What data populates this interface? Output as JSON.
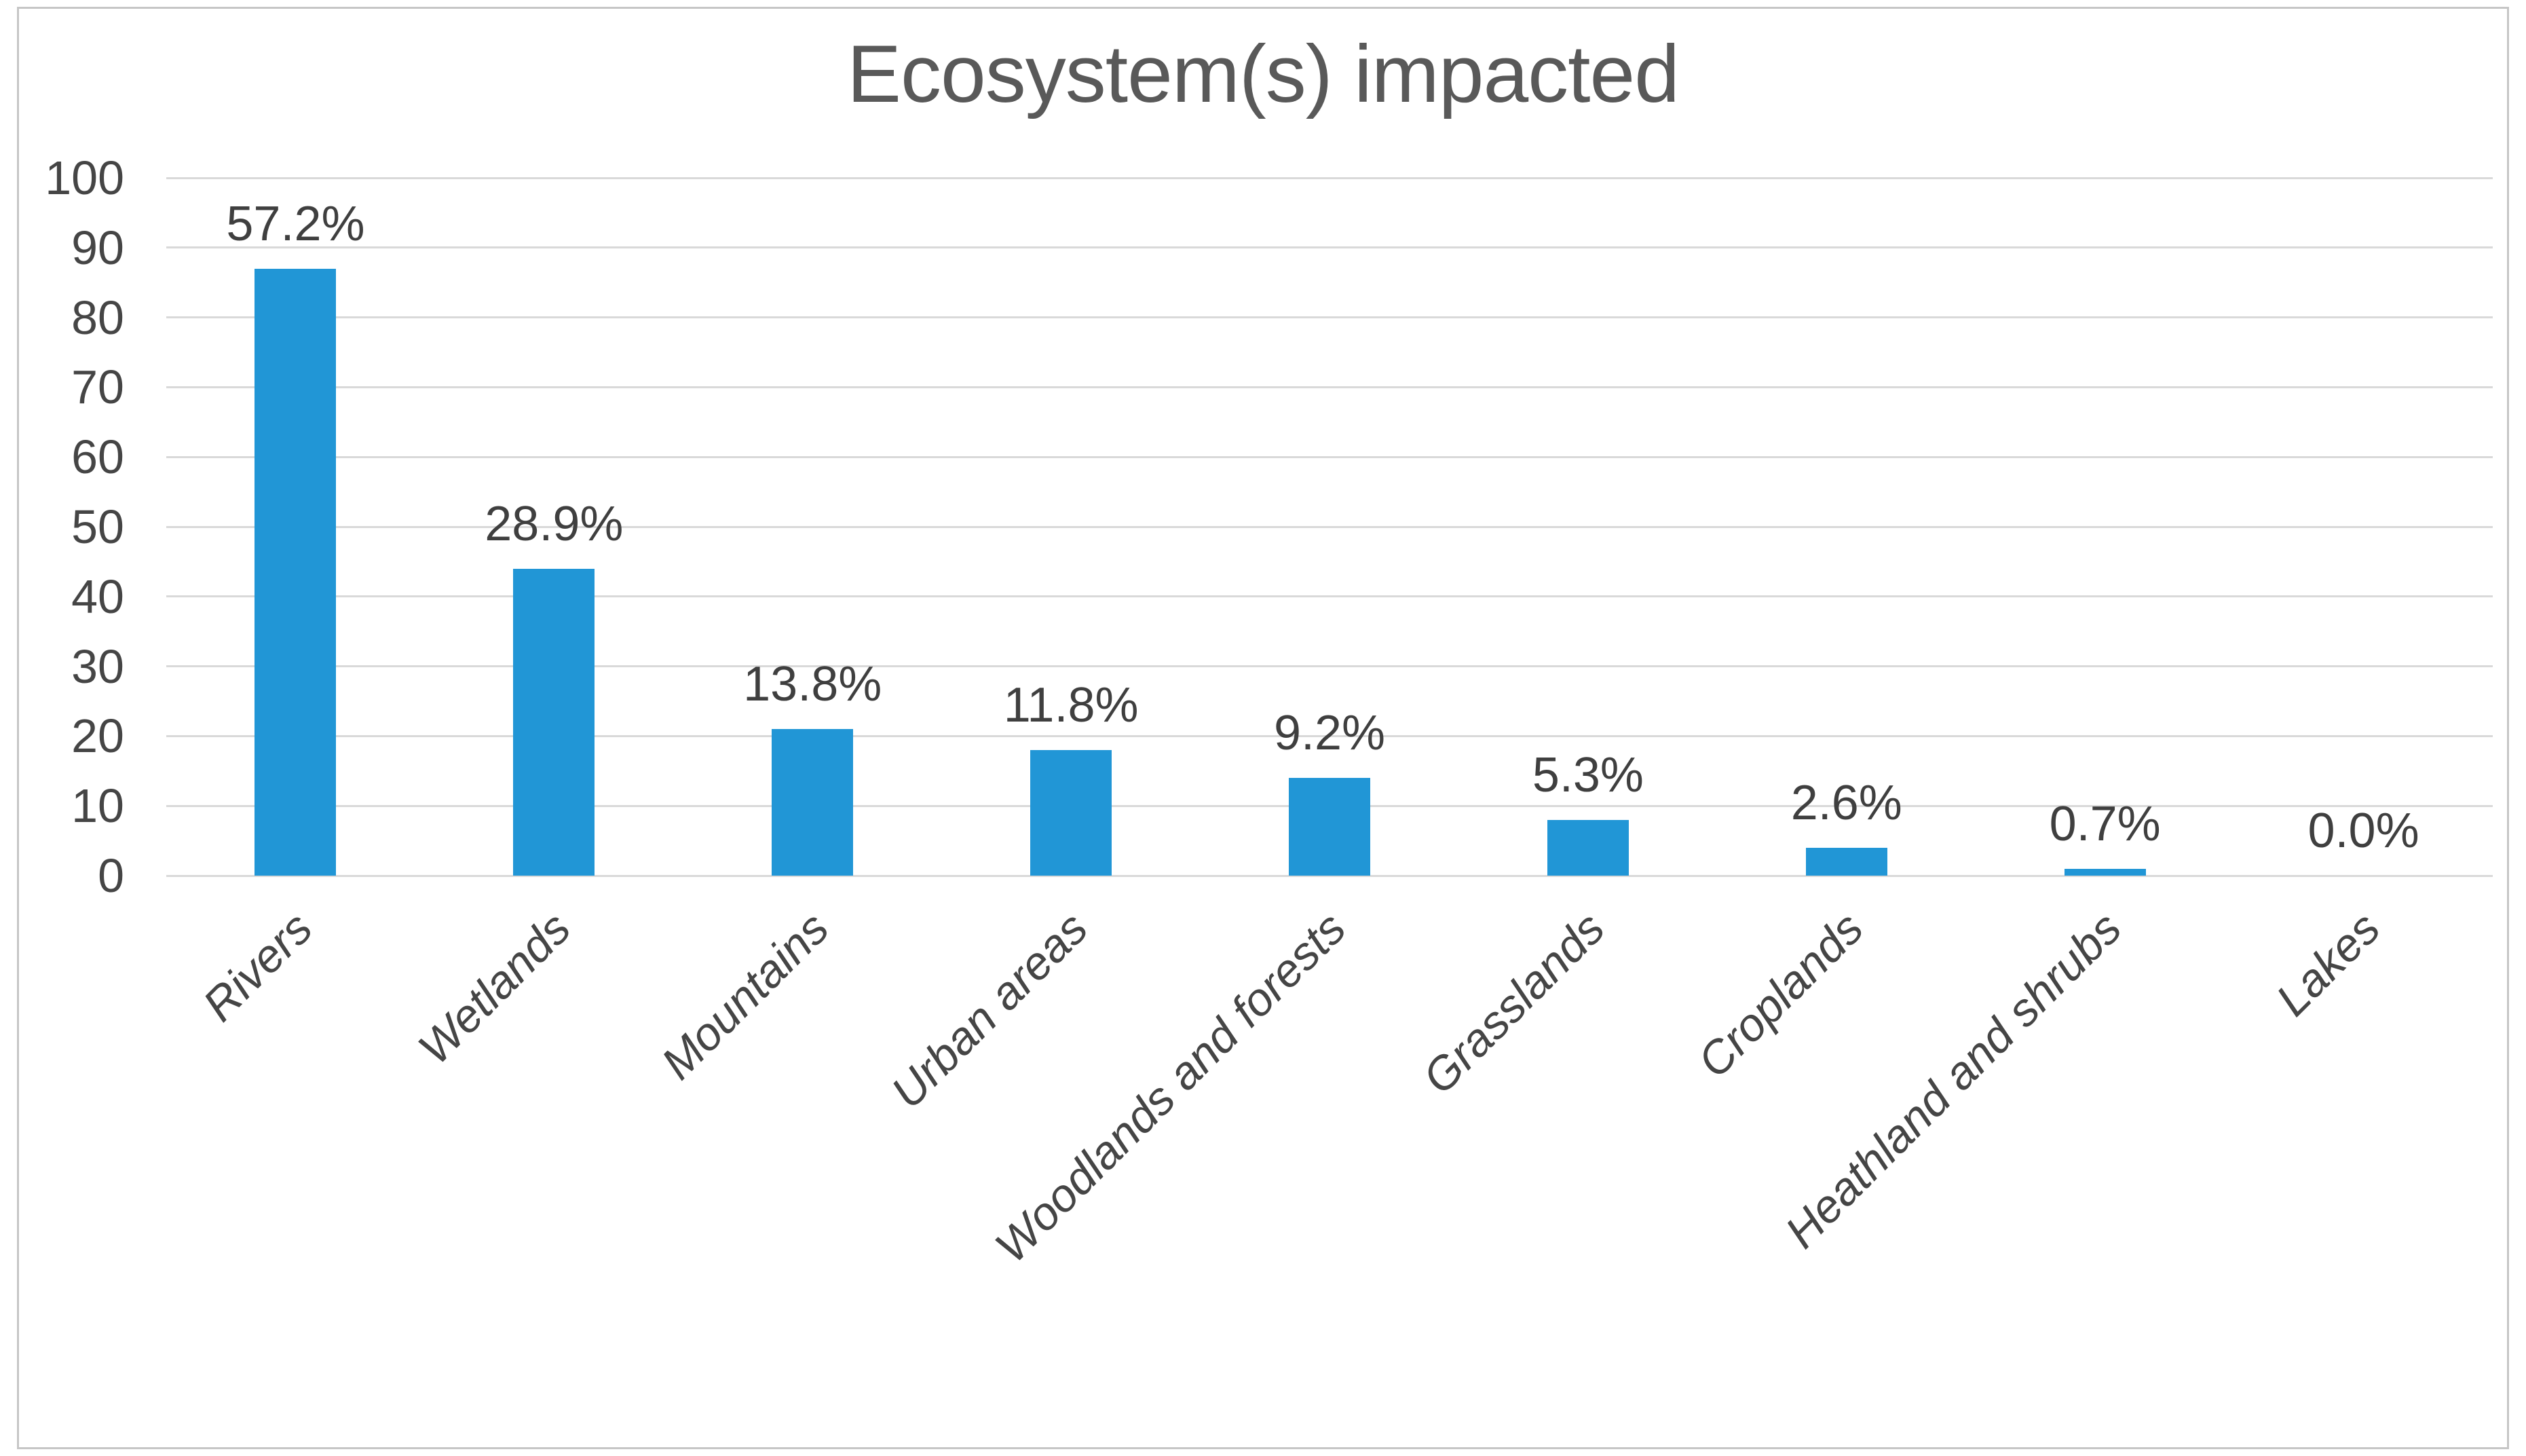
{
  "chart_data": {
    "type": "bar",
    "title": "Ecosystem(s) impacted",
    "categories": [
      "Rivers",
      "Wetlands",
      "Mountains",
      "Urban areas",
      "Woodlands and forests",
      "Grasslands",
      "Croplands",
      "Heathland and shrubs",
      "Lakes"
    ],
    "values": [
      87,
      44,
      21,
      18,
      14,
      8,
      4,
      1,
      0
    ],
    "data_labels": [
      "57.2%",
      "28.9%",
      "13.8%",
      "11.8%",
      "9.2%",
      "5.3%",
      "2.6%",
      "0.7%",
      "0.0%"
    ],
    "y_ticks": [
      0,
      10,
      20,
      30,
      40,
      50,
      60,
      70,
      80,
      90,
      100
    ],
    "ylim": [
      0,
      100
    ],
    "xlabel": "",
    "ylabel": "",
    "grid": true,
    "legend": false,
    "bar_color": "#2196d6",
    "title_color": "#595959",
    "tick_label_color": "#454545",
    "data_label_color": "#3f3f3f",
    "gridline_color": "#d9d9d9",
    "frame_border_color": "#c6c6c6"
  }
}
